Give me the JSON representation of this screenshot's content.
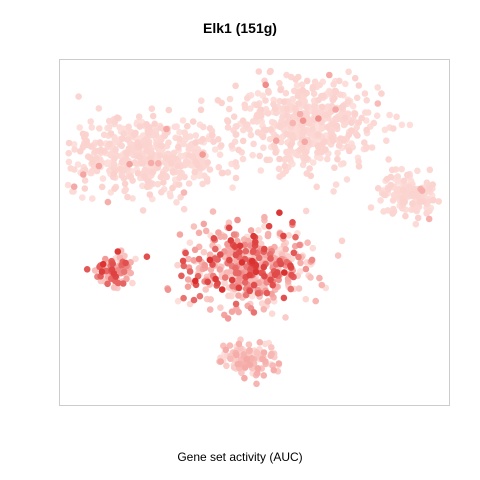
{
  "chart_data": {
    "type": "scatter",
    "title": "Elk1 (151g)",
    "xlabel": "Gene set activity (AUC)",
    "ylabel": "",
    "grid": false,
    "legend": "none",
    "colors": {
      "low": "#fde0dc",
      "mid": "#f4a3a0",
      "high": "#d62020",
      "frame": "#cccccc"
    },
    "clusters": [
      {
        "name": "upper-left",
        "center": [
          -18,
          14
        ],
        "spread": [
          12,
          6
        ],
        "n": 520,
        "activity": "low"
      },
      {
        "name": "upper-right",
        "center": [
          10,
          20
        ],
        "spread": [
          10,
          7
        ],
        "n": 520,
        "activity": "low"
      },
      {
        "name": "right-arm",
        "center": [
          27,
          7
        ],
        "spread": [
          4,
          3
        ],
        "n": 140,
        "activity": "low"
      },
      {
        "name": "center",
        "center": [
          0,
          -6
        ],
        "spread": [
          9,
          6
        ],
        "n": 520,
        "activity": "high"
      },
      {
        "name": "lower-left",
        "center": [
          -23,
          -7
        ],
        "spread": [
          3,
          2
        ],
        "n": 90,
        "activity": "high"
      },
      {
        "name": "bottom",
        "center": [
          0,
          -23
        ],
        "spread": [
          4,
          3
        ],
        "n": 120,
        "activity": "medium"
      }
    ]
  }
}
